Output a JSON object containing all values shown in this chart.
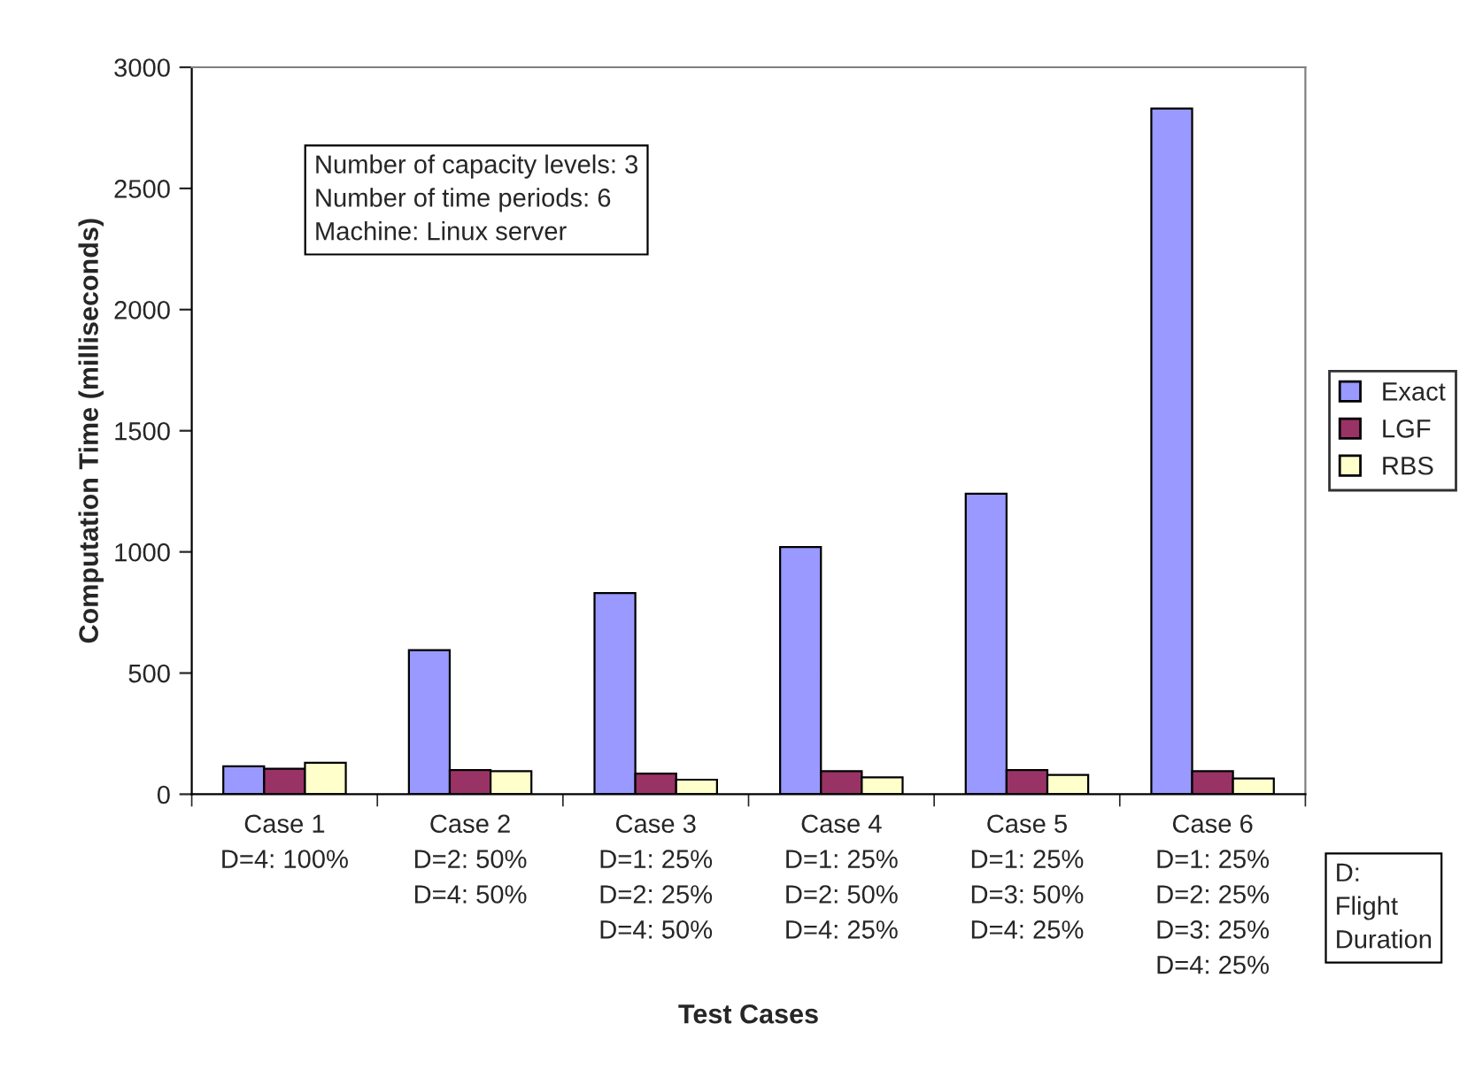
{
  "chart_data": {
    "type": "bar",
    "categories": [
      "Case 1\nD=4: 100%",
      "Case 2\nD=2: 50%\nD=4: 50%",
      "Case 3\nD=1: 25%\nD=2: 25%\nD=4: 50%",
      "Case 4\nD=1: 25%\nD=2: 50%\nD=4: 25%",
      "Case 5\nD=1: 25%\nD=3: 50%\nD=4: 25%",
      "Case 6\nD=1: 25%\nD=2: 25%\nD=3: 25%\nD=4: 25%"
    ],
    "series": [
      {
        "name": "Exact",
        "color": "#9999ff",
        "values": [
          115,
          595,
          830,
          1020,
          1240,
          2830
        ]
      },
      {
        "name": "LGF",
        "color": "#993366",
        "values": [
          105,
          100,
          85,
          95,
          100,
          95
        ]
      },
      {
        "name": "RBS",
        "color": "#ffffcc",
        "values": [
          130,
          95,
          60,
          70,
          80,
          65
        ]
      }
    ],
    "xlabel": "Test Cases",
    "ylabel": "Computation Time (milliseconds)",
    "ylim": [
      0,
      3000
    ],
    "yticks": [
      0,
      500,
      1000,
      1500,
      2000,
      2500,
      3000
    ],
    "grid": false,
    "legend": "right",
    "annotations": [
      "Number of capacity levels: 3\nNumber of time periods: 6\nMachine: Linux server",
      "D:\nFlight\nDuration"
    ]
  }
}
